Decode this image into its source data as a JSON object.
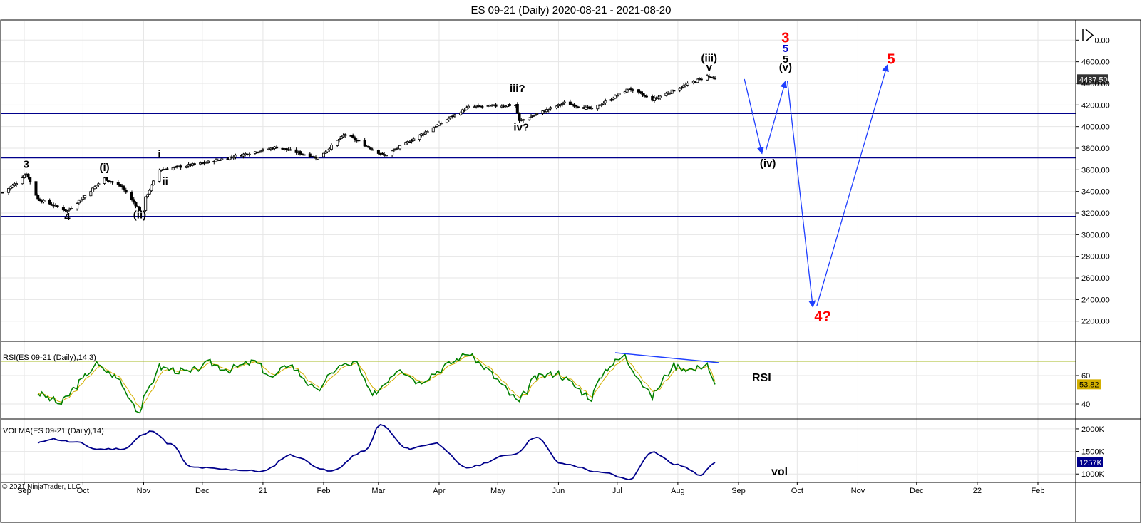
{
  "window": {
    "title": "ES 09-21 (Daily)  2020-08-21 - 2021-08-20"
  },
  "colors": {
    "price_up": "#ffffff",
    "price_down": "#000000",
    "rsi_line": "#008000",
    "rsi_signal": "#d4b000",
    "rsi_level": "#a6b820",
    "volma_line": "#00008b",
    "projection": "#1f3fff",
    "hline": "#00008b",
    "wave_black": "#000000",
    "wave_red": "#ff0000",
    "wave_blue": "#0000cc"
  },
  "copyright": "© 2021 NinjaTrader, LLC",
  "side_labels": {
    "rsi": "RSI",
    "vol": "vol"
  },
  "chart_data": [
    {
      "panel": "price",
      "type": "candlestick",
      "title": "ES 09-21 (Daily)  2020-08-21 - 2021-08-20",
      "y_ticks": [
        2200,
        2400,
        2600,
        2800,
        3000,
        3200,
        3400,
        3600,
        3800,
        4000,
        4200,
        4400,
        4600,
        4800
      ],
      "y_tick_labels": [
        "2200.00",
        "2400.00",
        "2600.00",
        "2800.00",
        "3000.00",
        "3200.00",
        "3400.00",
        "3600.00",
        "3800.00",
        "4000.00",
        "4200.00",
        "4400.00",
        "4600.00",
        "4800.00"
      ],
      "ylim": [
        2020,
        4980
      ],
      "last_price": 4437.5,
      "last_price_label": "4437.50",
      "close_path": [
        [
          "2020-08-21",
          3390
        ],
        [
          "2020-08-28",
          3480
        ],
        [
          "2020-09-02",
          3570
        ],
        [
          "2020-09-08",
          3330
        ],
        [
          "2020-09-23",
          3220
        ],
        [
          "2020-10-12",
          3520
        ],
        [
          "2020-10-21",
          3440
        ],
        [
          "2020-10-30",
          3230
        ],
        [
          "2020-11-09",
          3600
        ],
        [
          "2020-12-01",
          3660
        ],
        [
          "2021-01-08",
          3810
        ],
        [
          "2021-01-29",
          3710
        ],
        [
          "2021-02-12",
          3930
        ],
        [
          "2021-03-04",
          3730
        ],
        [
          "2021-04-16",
          4180
        ],
        [
          "2021-05-10",
          4200
        ],
        [
          "2021-05-12",
          4050
        ],
        [
          "2021-06-04",
          4220
        ],
        [
          "2021-06-18",
          4160
        ],
        [
          "2021-07-07",
          4350
        ],
        [
          "2021-07-19",
          4250
        ],
        [
          "2021-08-16",
          4470
        ],
        [
          "2021-08-20",
          4437.5
        ]
      ],
      "horizontal_lines": [
        4120,
        3710,
        3170
      ],
      "projection_arrows": [
        [
          [
            "2021-09-04",
            4440
          ],
          [
            "2021-09-13",
            3750
          ]
        ],
        [
          [
            "2021-09-15",
            3780
          ],
          [
            "2021-09-25",
            4420
          ]
        ],
        [
          [
            "2021-09-26",
            4420
          ],
          [
            "2021-10-09",
            2330
          ]
        ],
        [
          [
            "2021-10-11",
            2340
          ],
          [
            "2021-11-16",
            4570
          ]
        ]
      ],
      "wave_labels": [
        {
          "text": "3",
          "date": "2020-09-02",
          "price": 3620,
          "color": "black"
        },
        {
          "text": "4",
          "date": "2020-09-23",
          "price": 3135,
          "color": "black"
        },
        {
          "text": "(i)",
          "date": "2020-10-12",
          "price": 3590,
          "color": "black"
        },
        {
          "text": "(ii)",
          "date": "2020-10-30",
          "price": 3150,
          "color": "black"
        },
        {
          "text": "i",
          "date": "2020-11-09",
          "price": 3710,
          "color": "black"
        },
        {
          "text": "ii",
          "date": "2020-11-12",
          "price": 3460,
          "color": "black"
        },
        {
          "text": "iii?",
          "date": "2021-05-11",
          "price": 4320,
          "color": "black"
        },
        {
          "text": "iv?",
          "date": "2021-05-13",
          "price": 3960,
          "color": "black"
        },
        {
          "text": "(iii)",
          "date": "2021-08-17",
          "price": 4600,
          "color": "black"
        },
        {
          "text": "v",
          "date": "2021-08-17",
          "price": 4520,
          "color": "black"
        },
        {
          "text": "(iv)",
          "date": "2021-09-16",
          "price": 3630,
          "color": "black"
        },
        {
          "text": "3",
          "date": "2021-09-25",
          "price": 4780,
          "color": "red"
        },
        {
          "text": "5",
          "date": "2021-09-25",
          "price": 4690,
          "color": "blue"
        },
        {
          "text": "5",
          "date": "2021-09-25",
          "price": 4590,
          "color": "black"
        },
        {
          "text": "(v)",
          "date": "2021-09-25",
          "price": 4520,
          "color": "black"
        },
        {
          "text": "4?",
          "date": "2021-10-14",
          "price": 2200,
          "color": "red"
        },
        {
          "text": "5",
          "date": "2021-11-18",
          "price": 4580,
          "color": "red"
        }
      ]
    },
    {
      "panel": "rsi",
      "type": "line",
      "title": "RSI(ES 09-21 (Daily),14,3)",
      "y_ticks": [
        40,
        60
      ],
      "y_tick_labels": [
        "40",
        "60"
      ],
      "ylim": [
        30,
        84
      ],
      "upper_level": 70,
      "last_value": 53.82,
      "last_value_label": "53.82",
      "path": [
        [
          "2020-09-08",
          48
        ],
        [
          "2020-09-20",
          40
        ],
        [
          "2020-10-08",
          68
        ],
        [
          "2020-10-20",
          57
        ],
        [
          "2020-10-30",
          34
        ],
        [
          "2020-11-09",
          66
        ],
        [
          "2020-11-25",
          62
        ],
        [
          "2020-12-05",
          69
        ],
        [
          "2020-12-15",
          64
        ],
        [
          "2020-12-28",
          70
        ],
        [
          "2021-01-06",
          58
        ],
        [
          "2021-01-15",
          69
        ],
        [
          "2021-01-29",
          48
        ],
        [
          "2021-02-08",
          66
        ],
        [
          "2021-02-18",
          69
        ],
        [
          "2021-02-26",
          45
        ],
        [
          "2021-03-12",
          66
        ],
        [
          "2021-03-22",
          55
        ],
        [
          "2021-04-16",
          76
        ],
        [
          "2021-04-27",
          63
        ],
        [
          "2021-05-12",
          41
        ],
        [
          "2021-05-20",
          58
        ],
        [
          "2021-06-01",
          62
        ],
        [
          "2021-06-18",
          44
        ],
        [
          "2021-06-25",
          64
        ],
        [
          "2021-07-05",
          74
        ],
        [
          "2021-07-19",
          45
        ],
        [
          "2021-07-30",
          67
        ],
        [
          "2021-08-10",
          64
        ],
        [
          "2021-08-16",
          69
        ],
        [
          "2021-08-20",
          53.82
        ]
      ],
      "divergence_line": [
        [
          "2021-06-30",
          76
        ],
        [
          "2021-08-22",
          69
        ]
      ]
    },
    {
      "panel": "volma",
      "type": "line",
      "title": "VOLMA(ES 09-21 (Daily),14)",
      "y_ticks": [
        1000,
        1500,
        2000
      ],
      "y_tick_labels": [
        "1000K",
        "1500K",
        "2000K"
      ],
      "ylim": [
        830,
        2220
      ],
      "last_value": 1257,
      "last_value_label": "1257K",
      "path": [
        [
          "2020-09-08",
          1680
        ],
        [
          "2020-09-15",
          1780
        ],
        [
          "2020-09-28",
          1700
        ],
        [
          "2020-10-08",
          1550
        ],
        [
          "2020-10-22",
          1560
        ],
        [
          "2020-11-01",
          1870
        ],
        [
          "2020-11-06",
          1960
        ],
        [
          "2020-11-15",
          1660
        ],
        [
          "2020-11-25",
          1150
        ],
        [
          "2020-12-15",
          1100
        ],
        [
          "2021-01-01",
          1060
        ],
        [
          "2021-01-15",
          1420
        ],
        [
          "2021-02-05",
          1060
        ],
        [
          "2021-02-22",
          1500
        ],
        [
          "2021-03-02",
          2090
        ],
        [
          "2021-03-16",
          1560
        ],
        [
          "2021-03-31",
          1680
        ],
        [
          "2021-04-15",
          1140
        ],
        [
          "2021-05-10",
          1440
        ],
        [
          "2021-05-21",
          1830
        ],
        [
          "2021-06-03",
          1220
        ],
        [
          "2021-06-25",
          1020
        ],
        [
          "2021-07-07",
          880
        ],
        [
          "2021-07-19",
          1500
        ],
        [
          "2021-08-01",
          1200
        ],
        [
          "2021-08-13",
          980
        ],
        [
          "2021-08-20",
          1257
        ]
      ]
    }
  ],
  "x_axis": {
    "ticks": [
      [
        "2020-09-01",
        "Sep"
      ],
      [
        "2020-10-01",
        "Oct"
      ],
      [
        "2020-11-01",
        "Nov"
      ],
      [
        "2020-12-01",
        "Dec"
      ],
      [
        "2021-01-01",
        "21"
      ],
      [
        "2021-02-01",
        "Feb"
      ],
      [
        "2021-03-01",
        "Mar"
      ],
      [
        "2021-04-01",
        "Apr"
      ],
      [
        "2021-05-01",
        "May"
      ],
      [
        "2021-06-01",
        "Jun"
      ],
      [
        "2021-07-01",
        "Jul"
      ],
      [
        "2021-08-01",
        "Aug"
      ],
      [
        "2021-09-01",
        "Sep"
      ],
      [
        "2021-10-01",
        "Oct"
      ],
      [
        "2021-11-01",
        "Nov"
      ],
      [
        "2021-12-01",
        "Dec"
      ],
      [
        "2022-01-01",
        "22"
      ],
      [
        "2022-02-01",
        "Feb"
      ]
    ]
  }
}
